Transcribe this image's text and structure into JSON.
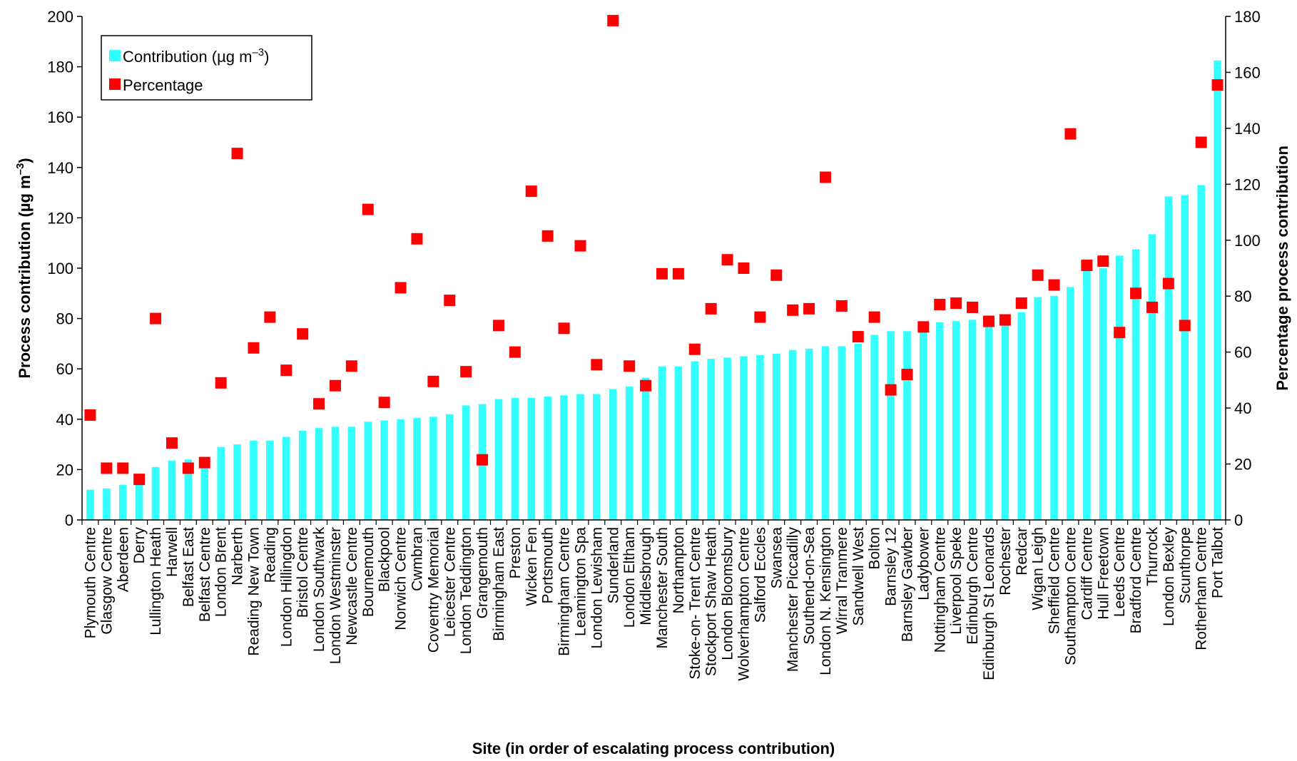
{
  "chart_data": {
    "type": "bar",
    "xlabel": "Site (in order of escalating process contribution)",
    "ylabel_left": "Process contribution (µg m",
    "ylabel_left_sup": "–3",
    "ylabel_left_end": ")",
    "ylabel_right": "Percentage process contribution",
    "ylim_left": [
      0,
      200
    ],
    "ylim_right": [
      0,
      180
    ],
    "yticks_left": [
      "0",
      "20",
      "40",
      "60",
      "80",
      "100",
      "120",
      "140",
      "160",
      "180",
      "200"
    ],
    "yticks_right": [
      "0",
      "20",
      "40",
      "60",
      "80",
      "100",
      "120",
      "140",
      "160",
      "180"
    ],
    "grid": false,
    "legend_position": "top-left",
    "colors": {
      "contribution": "#33FFFF",
      "percentage": "#FF0000"
    },
    "categories": [
      "Plymouth Centre",
      "Glasgow Centre",
      "Aberdeen",
      "Derry",
      "Lullington Heath",
      "Harwell",
      "Belfast East",
      "Belfast Centre",
      "London Brent",
      "Narberth",
      "Reading New Town",
      "Reading",
      "London Hillingdon",
      "Bristol Centre",
      "London Southwark",
      "London Westminster",
      "Newcastle Centre",
      "Bournemouth",
      "Blackpool",
      "Norwich Centre",
      "Cwmbran",
      "Coventry Memorial",
      "Leicester Centre",
      "London Teddington",
      "Grangemouth",
      "Birmingham East",
      "Preston",
      "Wicken Fen",
      "Portsmouth",
      "Birmingham Centre",
      "Leamington Spa",
      "London Lewisham",
      "Sunderland",
      "London Eltham",
      "Middlesbrough",
      "Manchester South",
      "Northampton",
      "Stoke-on- Trent Centre",
      "Stockport Shaw Heath",
      "London Bloomsbury",
      "Wolverhampton Centre",
      "Salford Eccles",
      "Swansea",
      "Manchester Piccadilly",
      "Southend-on-Sea",
      "London N. Kensington",
      "Wirral Tranmere",
      "Sandwell West",
      "Bolton",
      "Barnsley 12",
      "Barnsley Gawber",
      "Ladybower",
      "Nottingham Centre",
      "Liverpool Speke",
      "Edinburgh Centre",
      "Edinburgh St Leonards",
      "Rochester",
      "Redcar",
      "Wigan Leigh",
      "Sheffield Centre",
      "Southampton Centre",
      "Cardiff Centre",
      "Hull Freetown",
      "Leeds Centre",
      "Bradford Centre",
      "Thurrock",
      "London Bexley",
      "Scunthorpe",
      "Rotherham Centre",
      "Port Talbot"
    ],
    "series": [
      {
        "name": "Contribution (µg m",
        "name_sup": "–3",
        "name_end": ")",
        "type": "bar",
        "axis": "left",
        "values": [
          12,
          12.5,
          14,
          16,
          21,
          23.5,
          24,
          25,
          29,
          30,
          31.5,
          31.5,
          33,
          35.5,
          36.5,
          37,
          37,
          39,
          39.5,
          40,
          40.5,
          41,
          42,
          45.5,
          46,
          48,
          48.5,
          48.5,
          49,
          49.5,
          50,
          50,
          52,
          53,
          56.5,
          61,
          61,
          63,
          64,
          64.5,
          65,
          65.5,
          66,
          67.5,
          68,
          69,
          69,
          70,
          73.5,
          75,
          75,
          75.5,
          78.5,
          79,
          79.5,
          79.5,
          80,
          82.5,
          88.5,
          89,
          92.5,
          99,
          100,
          105,
          107.5,
          113.5,
          128.5,
          129,
          133,
          182.5
        ]
      },
      {
        "name": "Percentage",
        "type": "scatter",
        "axis": "right",
        "values": [
          37.5,
          18.5,
          18.5,
          14.5,
          72,
          27.5,
          18.5,
          20.5,
          49,
          131,
          61.5,
          72.5,
          53.5,
          66.5,
          41.5,
          48,
          55,
          111,
          42,
          83,
          100.5,
          49.5,
          78.5,
          53,
          21.5,
          69.5,
          60,
          117.5,
          101.5,
          68.5,
          98,
          55.5,
          178.5,
          55,
          48,
          88,
          88,
          61,
          75.5,
          93,
          90,
          72.5,
          87.5,
          75,
          75.5,
          122.5,
          76.5,
          65.5,
          72.5,
          46.5,
          52,
          69,
          77,
          77.5,
          76,
          71,
          71.5,
          77.5,
          87.5,
          84,
          138,
          91,
          92.5,
          67,
          81,
          76,
          84.5,
          69.5,
          135,
          155.5
        ]
      }
    ]
  }
}
